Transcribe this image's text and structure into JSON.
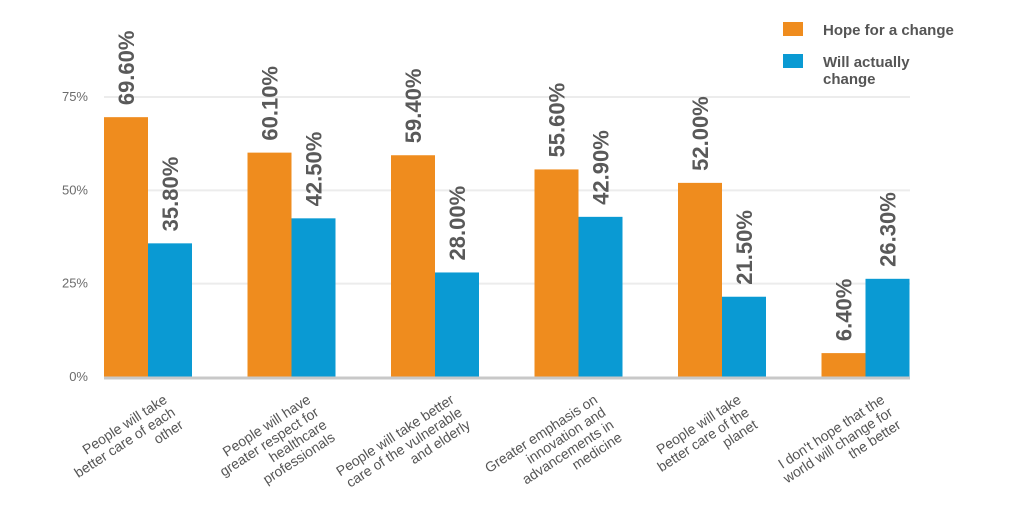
{
  "chart_data": {
    "type": "bar",
    "categories": [
      [
        "People will take",
        "better care of each",
        "other"
      ],
      [
        "People will have",
        "greater respect for",
        "healthcare",
        "professionals"
      ],
      [
        "People will take better",
        "care of the vulnerable",
        "and elderly"
      ],
      [
        "Greater emphasis on",
        "innovation and",
        "advancements in",
        "medicine"
      ],
      [
        "People will take",
        "better care of the",
        "planet"
      ],
      [
        "I don't hope that the",
        "world will change for",
        "the better"
      ]
    ],
    "series": [
      {
        "name": "Hope for a change",
        "color": "#ef8c1e",
        "values": [
          69.6,
          60.1,
          59.4,
          55.6,
          52.0,
          6.4
        ],
        "labels": [
          "69.60%",
          "60.10%",
          "59.40%",
          "55.60%",
          "52.00%",
          "6.40%"
        ]
      },
      {
        "name": "Will actually change",
        "legend_lines": [
          "Will actually",
          "change"
        ],
        "color": "#0a9ad3",
        "values": [
          35.8,
          42.5,
          28.0,
          42.9,
          21.5,
          26.3
        ],
        "labels": [
          "35.80%",
          "42.50%",
          "28.00%",
          "42.90%",
          "21.50%",
          "26.30%"
        ]
      }
    ],
    "yticks": [
      0,
      25,
      50,
      75
    ],
    "ytick_labels": [
      "0%",
      "25%",
      "50%",
      "75%"
    ],
    "ylim": [
      0,
      75
    ],
    "grid": true,
    "legend": "top-right",
    "bar_heights_rendered_note": ""
  }
}
